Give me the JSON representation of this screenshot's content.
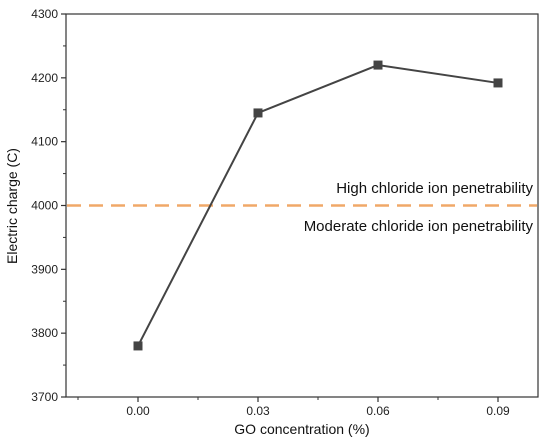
{
  "chart_data": {
    "type": "line",
    "xlabel": "GO concentration (%)",
    "ylabel": "Electric charge (C)",
    "categories": [
      "0.00",
      "0.03",
      "0.06",
      "0.09"
    ],
    "x": [
      0.0,
      0.03,
      0.06,
      0.09
    ],
    "xlim": [
      -0.018,
      0.1
    ],
    "ylim": [
      3700,
      4300
    ],
    "yticks": [
      3700,
      3800,
      3900,
      4000,
      4100,
      4200,
      4300
    ],
    "series": [
      {
        "values": [
          3780,
          4145,
          4220,
          4192
        ],
        "color": "#444444",
        "marker": "square"
      }
    ],
    "reference_line": {
      "y": 4000,
      "color": "#F0A868",
      "style": "dashed"
    },
    "annotations": {
      "above": "High chloride ion penetrability",
      "below": "Moderate chloride ion penetrability"
    },
    "grid": false,
    "legend": "none"
  }
}
